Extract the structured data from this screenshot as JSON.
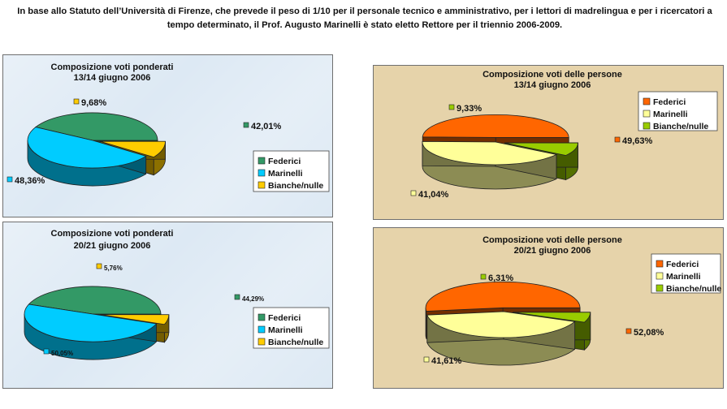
{
  "header": {
    "line1": "In base allo Statuto dell’Università di Firenze, che prevede il peso di 1/10 per il personale tecnico e amministrativo, per i lettori di madrelingua e per i ricercatori a",
    "line2": "tempo determinato, il Prof. Augusto Marinelli è stato eletto Rettore per il triennio 2006-2009."
  },
  "colors": {
    "federici_green": "#339966",
    "marinelli_cyan": "#00ccff",
    "bianche_yellow": "#ffcc00",
    "federici_orange": "#ff6600",
    "marinelli_paleyellow": "#ffff99",
    "bianche_lightgreen": "#99cc00",
    "panel_blue": "#dde9f4",
    "panel_parchment": "#e6d3aa"
  },
  "chart_data": [
    {
      "type": "pie",
      "title": [
        "Composizione voti ponderati",
        "13/14 giugno 2006"
      ],
      "legend_position": "right",
      "legend": [
        "Federici",
        "Marinelli",
        "Bianche/nulle"
      ],
      "values": [
        42.01,
        48.36,
        9.68
      ],
      "labels": [
        "42,01%",
        "48,36%",
        "9,68%"
      ],
      "colors": [
        "#339966",
        "#00ccff",
        "#ffcc00"
      ]
    },
    {
      "type": "pie",
      "title": [
        "Composizione voti ponderati",
        "20/21 giugno 2006"
      ],
      "legend_position": "right",
      "legend": [
        "Federici",
        "Marinelli",
        "Bianche/nulle"
      ],
      "values": [
        44.29,
        50.05,
        5.76
      ],
      "labels": [
        "44,29%",
        "50,05%",
        "5,76%"
      ],
      "colors": [
        "#339966",
        "#00ccff",
        "#ffcc00"
      ]
    },
    {
      "type": "pie",
      "title": [
        "Composizione voti delle persone",
        "13/14 giugno 2006"
      ],
      "legend_position": "top-right",
      "legend": [
        "Federici",
        "Marinelli",
        "Bianche/nulle"
      ],
      "values": [
        49.63,
        41.04,
        9.33
      ],
      "labels": [
        "49,63%",
        "41,04%",
        "9,33%"
      ],
      "colors": [
        "#ff6600",
        "#ffff99",
        "#99cc00"
      ]
    },
    {
      "type": "pie",
      "title": [
        "Composizione voti  delle persone",
        "20/21 giugno 2006"
      ],
      "legend_position": "top-right",
      "legend": [
        "Federici",
        "Marinelli",
        "Bianche/nulle"
      ],
      "values": [
        52.08,
        41.61,
        6.31
      ],
      "labels": [
        "52,08%",
        "41,61%",
        "6,31%"
      ],
      "colors": [
        "#ff6600",
        "#ffff99",
        "#99cc00"
      ]
    }
  ]
}
